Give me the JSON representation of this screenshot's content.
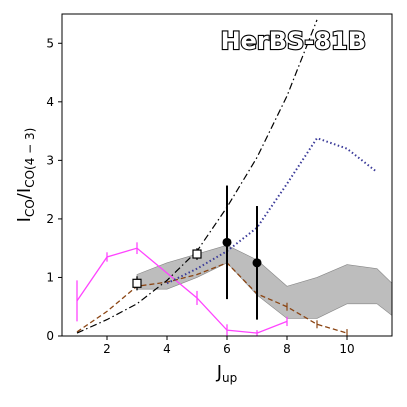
{
  "chart_data": {
    "type": "line",
    "title": "HerBS-81B",
    "xlabel": {
      "main": "J",
      "sub": "up"
    },
    "ylabel": {
      "main1": "I",
      "sub1": "CO",
      "sep": "/",
      "main2": "I",
      "sub2": "CO(4 − 3)"
    },
    "xlim": [
      0.5,
      11.5
    ],
    "ylim": [
      0,
      5.5
    ],
    "x_ticks": [
      2,
      4,
      6,
      8,
      10
    ],
    "x_tick_labels": [
      "2",
      "4",
      "6",
      "8",
      "10"
    ],
    "y_ticks": [
      0,
      1,
      2,
      3,
      4,
      5
    ],
    "y_tick_labels": [
      "0",
      "1",
      "2",
      "3",
      "4",
      "5"
    ],
    "grid": false,
    "colors": {
      "band": "#bdbdbd",
      "band_edge": "#888888",
      "magenta": "#ff44ff",
      "brown": "#8b4513",
      "purple": "#3b3b99",
      "black": "#000000"
    },
    "band": {
      "x": [
        3,
        4,
        5,
        6,
        7,
        8,
        9,
        10,
        11,
        11.5
      ],
      "lower": [
        0.8,
        0.8,
        1.0,
        1.25,
        0.7,
        0.3,
        0.3,
        0.55,
        0.55,
        0.35
      ],
      "upper": [
        1.05,
        1.25,
        1.4,
        1.55,
        1.3,
        0.85,
        1.0,
        1.22,
        1.15,
        0.9
      ]
    },
    "series": [
      {
        "style": "magenta-solid",
        "x": [
          1,
          2,
          3,
          5,
          6,
          7,
          8
        ],
        "y": [
          0.6,
          1.35,
          1.5,
          0.65,
          0.1,
          0.05,
          0.25
        ],
        "yerr": [
          0.35,
          0.08,
          0.1,
          0.12,
          0.1,
          0.05,
          0.08
        ]
      },
      {
        "style": "brown-dashed",
        "x": [
          1,
          2,
          3,
          4,
          5,
          6,
          7,
          8,
          9,
          10
        ],
        "y": [
          0.07,
          0.42,
          0.85,
          0.92,
          1.05,
          1.25,
          0.72,
          0.5,
          0.2,
          0.05
        ]
      },
      {
        "style": "black-dashdot",
        "x": [
          1,
          2,
          3,
          4,
          5,
          6,
          7,
          8,
          9
        ],
        "y": [
          0.05,
          0.28,
          0.55,
          0.95,
          1.45,
          2.2,
          3.05,
          4.1,
          5.4
        ]
      },
      {
        "style": "purple-dotted",
        "x": [
          4,
          5,
          6,
          7,
          8,
          9,
          10,
          11
        ],
        "y": [
          0.9,
          1.15,
          1.45,
          1.85,
          2.6,
          3.38,
          3.2,
          2.8
        ]
      },
      {
        "style": "open-squares",
        "x": [
          3,
          5
        ],
        "y": [
          0.9,
          1.4
        ],
        "yerr": [
          0.12,
          0.1
        ]
      },
      {
        "style": "filled-circles",
        "x": [
          6,
          7
        ],
        "y": [
          1.6,
          1.25
        ],
        "yerr": [
          0.97,
          0.97
        ]
      }
    ]
  }
}
